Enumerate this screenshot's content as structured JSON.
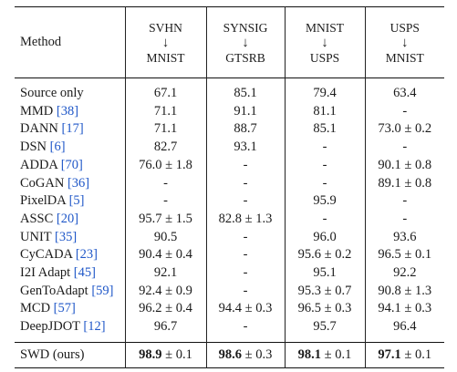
{
  "columns": [
    {
      "src": "SVHN",
      "tgt": "MNIST"
    },
    {
      "src": "SYNSIG",
      "tgt": "GTSRB"
    },
    {
      "src": "MNIST",
      "tgt": "USPS"
    },
    {
      "src": "USPS",
      "tgt": "MNIST"
    }
  ],
  "header": {
    "method": "Method",
    "arrow": "↓"
  },
  "rows": [
    {
      "name": "Source only",
      "cite": "",
      "v": [
        "67.1",
        "85.1",
        "79.4",
        "63.4"
      ]
    },
    {
      "name": "MMD",
      "cite": "[38]",
      "v": [
        "71.1",
        "91.1",
        "81.1",
        "-"
      ]
    },
    {
      "name": "DANN",
      "cite": "[17]",
      "v": [
        "71.1",
        "88.7",
        "85.1",
        "73.0 ± 0.2"
      ]
    },
    {
      "name": "DSN",
      "cite": "[6]",
      "v": [
        "82.7",
        "93.1",
        "-",
        "-"
      ]
    },
    {
      "name": "ADDA",
      "cite": "[70]",
      "v": [
        "76.0 ± 1.8",
        "-",
        "-",
        "90.1 ± 0.8"
      ]
    },
    {
      "name": "CoGAN",
      "cite": "[36]",
      "v": [
        "-",
        "-",
        "-",
        "89.1 ± 0.8"
      ]
    },
    {
      "name": "PixelDA",
      "cite": "[5]",
      "v": [
        "-",
        "-",
        "95.9",
        "-"
      ]
    },
    {
      "name": "ASSC",
      "cite": "[20]",
      "v": [
        "95.7 ± 1.5",
        "82.8 ± 1.3",
        "-",
        "-"
      ]
    },
    {
      "name": "UNIT",
      "cite": "[35]",
      "v": [
        "90.5",
        "-",
        "96.0",
        "93.6"
      ]
    },
    {
      "name": "CyCADA",
      "cite": "[23]",
      "v": [
        "90.4 ± 0.4",
        "-",
        "95.6 ± 0.2",
        "96.5 ± 0.1"
      ]
    },
    {
      "name": "I2I Adapt",
      "cite": "[45]",
      "v": [
        "92.1",
        "-",
        "95.1",
        "92.2"
      ]
    },
    {
      "name": "GenToAdapt",
      "cite": "[59]",
      "v": [
        "92.4 ± 0.9",
        "-",
        "95.3 ± 0.7",
        "90.8 ± 1.3"
      ]
    },
    {
      "name": "MCD",
      "cite": "[57]",
      "v": [
        "96.2 ± 0.4",
        "94.4 ± 0.3",
        "96.5 ± 0.3",
        "94.1 ± 0.3"
      ]
    },
    {
      "name": "DeepJDOT",
      "cite": "[12]",
      "v": [
        "96.7",
        "-",
        "95.7",
        "96.4"
      ]
    }
  ],
  "ours": {
    "name": "SWD (ours)",
    "v": [
      {
        "bold": "98.9",
        "rest": " ± 0.1"
      },
      {
        "bold": "98.6",
        "rest": " ± 0.3"
      },
      {
        "bold": "98.1",
        "rest": " ± 0.1"
      },
      {
        "bold": "97.1",
        "rest": " ± 0.1"
      }
    ]
  }
}
